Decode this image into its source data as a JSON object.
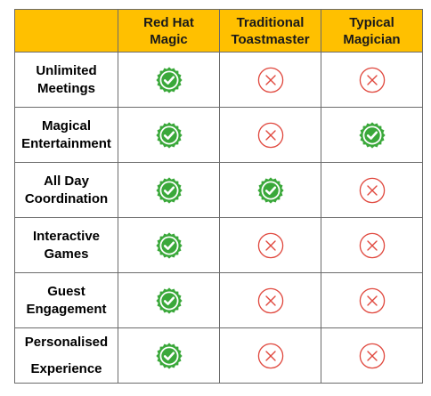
{
  "header": {
    "feature_col": "",
    "columns": [
      "Red Hat\nMagic",
      "Traditional\nToastmaster",
      "Typical\nMagician"
    ]
  },
  "rows": [
    {
      "feature": "Unlimited\nMeetings",
      "values": [
        "yes",
        "no",
        "no"
      ]
    },
    {
      "feature": "Magical\nEntertainment",
      "values": [
        "yes",
        "no",
        "yes"
      ]
    },
    {
      "feature": "All Day\nCoordination",
      "values": [
        "yes",
        "yes",
        "no"
      ]
    },
    {
      "feature": "Interactive\nGames",
      "values": [
        "yes",
        "no",
        "no"
      ]
    },
    {
      "feature": "Guest\nEngagement",
      "values": [
        "yes",
        "no",
        "no"
      ]
    },
    {
      "feature": "Personalised\nExperience",
      "values": [
        "yes",
        "no",
        "no"
      ]
    }
  ],
  "icons": {
    "yes": "green-check-badge-icon",
    "no": "red-cross-circle-icon"
  },
  "colors": {
    "header_bg": "#ffc000",
    "check_green": "#3aa83a",
    "check_green_dark": "#2e8b2e",
    "cross_red": "#e0483e",
    "border": "#6b6b6b"
  }
}
